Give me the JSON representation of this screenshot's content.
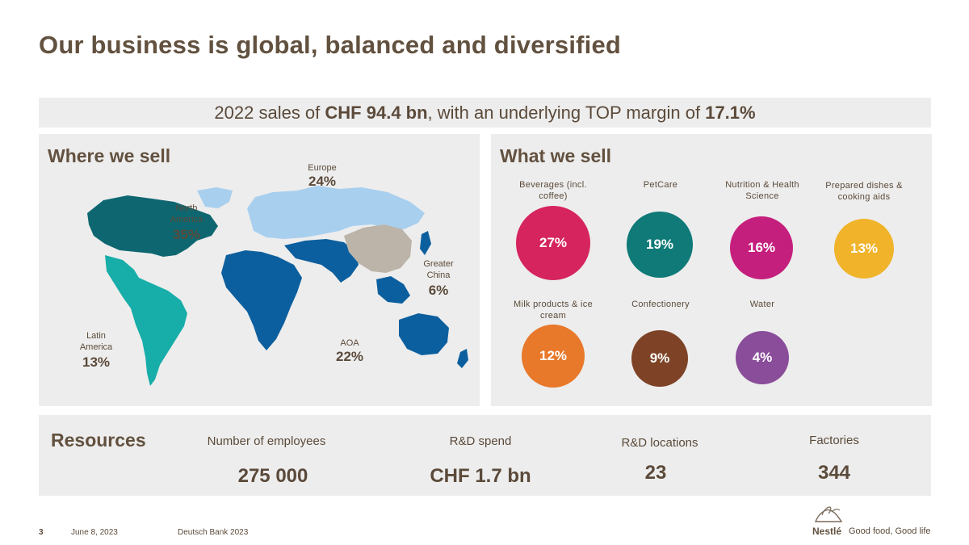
{
  "title": "Our business is global, balanced and diversified",
  "banner": {
    "prefix": "2022 sales of ",
    "sales": "CHF 94.4 bn",
    "middle": ", with an underlying TOP margin of ",
    "margin": "17.1%"
  },
  "where": {
    "heading": "Where we sell",
    "regions": [
      {
        "name": "Europe",
        "pct": "24%"
      },
      {
        "name": "North America",
        "pct": "35%"
      },
      {
        "name": "Greater China",
        "pct": "6%"
      },
      {
        "name": "Latin America",
        "pct": "13%"
      },
      {
        "name": "AOA",
        "pct": "22%"
      }
    ]
  },
  "what": {
    "heading": "What we sell",
    "categories": [
      {
        "name": "Beverages (incl. coffee)",
        "pct": "27%",
        "color": "#d6245e"
      },
      {
        "name": "PetCare",
        "pct": "19%",
        "color": "#0f7a78"
      },
      {
        "name": "Nutrition & Health Science",
        "pct": "16%",
        "color": "#c51f7e"
      },
      {
        "name": "Prepared dishes & cooking aids",
        "pct": "13%",
        "color": "#f0b32a"
      },
      {
        "name": "Milk products & ice cream",
        "pct": "12%",
        "color": "#e8782a"
      },
      {
        "name": "Confectionery",
        "pct": "9%",
        "color": "#7e4326"
      },
      {
        "name": "Water",
        "pct": "4%",
        "color": "#8a4d9a"
      }
    ]
  },
  "resources": {
    "heading": "Resources",
    "items": [
      {
        "label": "Number of employees",
        "value": "275 000"
      },
      {
        "label": "R&D spend",
        "value": "CHF 1.7 bn"
      },
      {
        "label": "R&D locations",
        "value": "23"
      },
      {
        "label": "Factories",
        "value": "344"
      }
    ]
  },
  "footer": {
    "page": "3",
    "date": "June 8, 2023",
    "event": "Deutsch Bank 2023",
    "brand": "Nestlé",
    "tagline": "Good food, Good life"
  },
  "colors": {
    "europe": "#a9cfee",
    "north_america": "#0e6770",
    "latin_america": "#17ada8",
    "aoa": "#0c5f9e",
    "greater_china": "#bcb4a8"
  }
}
